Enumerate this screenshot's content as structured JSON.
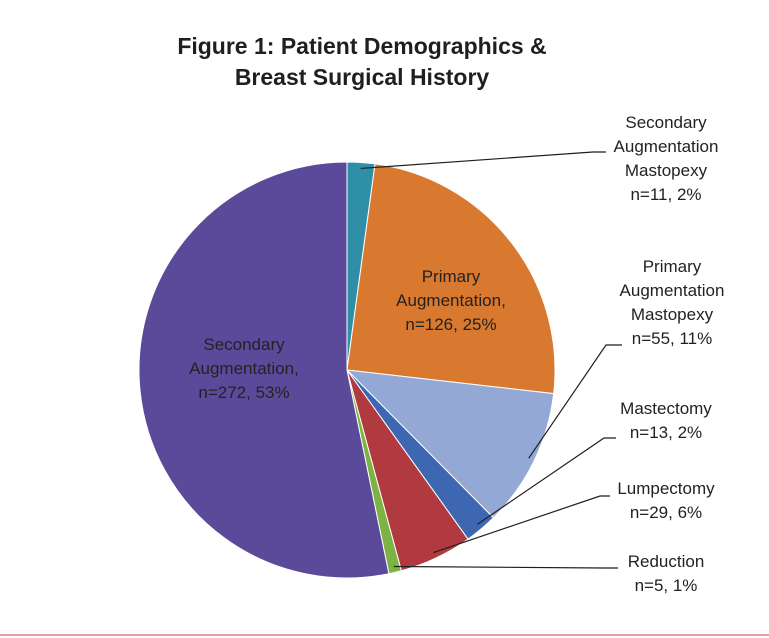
{
  "chart_data": {
    "type": "pie",
    "title": [
      "Figure 1: Patient Demographics &",
      "Breast Surgical History"
    ],
    "slices": [
      {
        "name": "Secondary Augmentation Mastopexy",
        "n": 11,
        "percent": 2,
        "color": "#2e8fa6",
        "label_lines": [
          "Secondary",
          "Augmentation",
          "Mastopexy",
          "n=11, 2%"
        ]
      },
      {
        "name": "Primary Augmentation",
        "n": 126,
        "percent": 25,
        "color": "#d9782f",
        "label_lines": [
          "Primary",
          "Augmentation,",
          "n=126, 25%"
        ]
      },
      {
        "name": "Primary Augmentation Mastopexy",
        "n": 55,
        "percent": 11,
        "color": "#94a8d6",
        "label_lines": [
          "Primary",
          "Augmentation",
          "Mastopexy",
          "n=55, 11%"
        ]
      },
      {
        "name": "Mastectomy",
        "n": 13,
        "percent": 2,
        "color": "#3d67b0",
        "label_lines": [
          "Mastectomy",
          "n=13, 2%"
        ]
      },
      {
        "name": "Lumpectomy",
        "n": 29,
        "percent": 6,
        "color": "#b03a3f",
        "label_lines": [
          "Lumpectomy",
          "n=29, 6%"
        ]
      },
      {
        "name": "Reduction",
        "n": 5,
        "percent": 1,
        "color": "#7cb342",
        "label_lines": [
          "Reduction",
          "n=5, 1%"
        ]
      },
      {
        "name": "Secondary Augmentation",
        "n": 272,
        "percent": 53,
        "color": "#5b4a99",
        "label_lines": [
          "Secondary",
          "Augmentation,",
          "n=272, 53%"
        ]
      }
    ],
    "legend": "none",
    "start": "top",
    "direction": "clockwise"
  }
}
